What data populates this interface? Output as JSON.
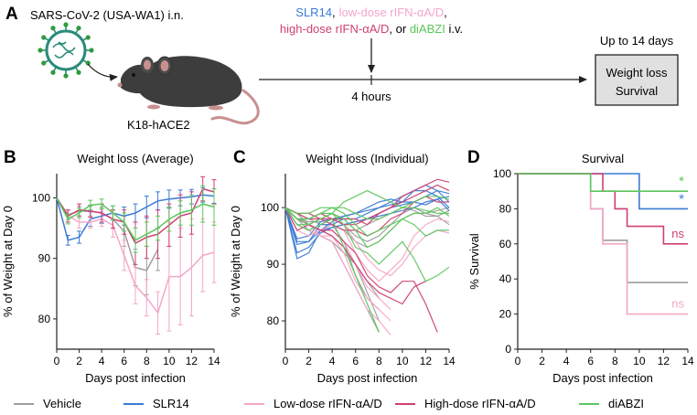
{
  "colors": {
    "vehicle": "#9e9e9e",
    "slr14": "#3a7bd5",
    "low": "#f4a6c8",
    "high": "#cf3f72",
    "diabzi": "#5cc65c",
    "box_fill": "#e0e0e0"
  },
  "panel_a": {
    "letter": "A",
    "virus_label": "SARS-CoV-2 (USA-WA1) i.n.",
    "mouse_label": "K18-hACE2",
    "treat_slr14": "SLR14",
    "treat_low": "low-dose rIFN-αA/D",
    "treat_high": "high-dose rIFN-αA/D",
    "treat_or": ", or ",
    "treat_diabzi": "diABZI",
    "treat_iv": " i.v.",
    "comma": ",",
    "time_label": "4 hours",
    "duration_label": "Up to 14 days",
    "outcome_line1": "Weight loss",
    "outcome_line2": "Survival"
  },
  "panel_labels": {
    "b": "B",
    "c": "C",
    "d": "D"
  },
  "legend": [
    {
      "key": "vehicle",
      "label": "Vehicle"
    },
    {
      "key": "slr14",
      "label": "SLR14"
    },
    {
      "key": "low",
      "label": "Low-dose rIFN-αA/D"
    },
    {
      "key": "high",
      "label": "High-dose rIFN-αA/D"
    },
    {
      "key": "diabzi",
      "label": "diABZI"
    }
  ],
  "chart_data": [
    {
      "id": "weight_avg",
      "type": "line",
      "title": "Weight loss (Average)",
      "xlabel": "Days post infection",
      "ylabel": "% of Weight at Day 0",
      "xlim": [
        0,
        14
      ],
      "ylim": [
        75,
        104
      ],
      "xticks": [
        0,
        2,
        4,
        6,
        8,
        10,
        12,
        14
      ],
      "yticks": [
        80,
        90,
        100
      ],
      "x": [
        0,
        1,
        2,
        3,
        4,
        5,
        6,
        7,
        8,
        9,
        10,
        11,
        12,
        13,
        14
      ],
      "series": [
        {
          "key": "vehicle",
          "name": "Vehicle",
          "values": [
            100,
            97.2,
            97.8,
            97.8,
            97.5,
            96.5,
            94.5,
            88.5,
            88.0,
            91.5,
            null,
            null,
            null,
            null,
            null
          ],
          "errors": [
            0,
            0.8,
            0.8,
            0.8,
            1.0,
            1.5,
            2.5,
            3.0,
            4.0,
            3.5,
            null,
            null,
            null,
            null,
            null
          ]
        },
        {
          "key": "slr14",
          "name": "SLR14",
          "values": [
            100,
            93.0,
            93.5,
            96.5,
            97.0,
            97.5,
            97.0,
            97.5,
            98.5,
            99.5,
            99.8,
            100.0,
            100.2,
            100.5,
            100.3
          ],
          "errors": [
            0,
            0.8,
            1.0,
            1.2,
            1.2,
            1.2,
            1.5,
            1.5,
            1.8,
            1.5,
            1.5,
            1.3,
            1.2,
            1.2,
            1.2
          ]
        },
        {
          "key": "low",
          "name": "Low-dose rIFN-αA/D",
          "values": [
            100,
            97.0,
            96.0,
            96.0,
            96.5,
            95.5,
            90.5,
            85.5,
            83.5,
            81.0,
            87.0,
            87.0,
            88.5,
            90.5,
            91.0
          ],
          "errors": [
            0,
            1.0,
            1.0,
            1.0,
            1.2,
            2.0,
            2.5,
            3.0,
            3.0,
            3.5,
            9.0,
            8.0,
            8.0,
            6.0,
            5.0
          ]
        },
        {
          "key": "high",
          "name": "High-dose rIFN-αA/D",
          "values": [
            100,
            97.0,
            98.0,
            97.8,
            97.5,
            96.5,
            96.0,
            92.5,
            93.5,
            94.0,
            95.5,
            97.0,
            97.5,
            101.5,
            101.0
          ],
          "errors": [
            0,
            1.0,
            1.0,
            1.0,
            1.5,
            1.5,
            2.0,
            3.5,
            3.5,
            4.0,
            3.5,
            3.5,
            3.5,
            2.0,
            2.0
          ]
        },
        {
          "key": "diabzi",
          "name": "diABZI",
          "values": [
            100,
            96.5,
            97.5,
            98.8,
            99.0,
            97.5,
            96.0,
            93.0,
            94.0,
            95.0,
            96.5,
            97.5,
            98.0,
            99.0,
            98.5
          ],
          "errors": [
            0,
            0.8,
            0.8,
            0.8,
            0.8,
            1.2,
            1.5,
            2.0,
            2.0,
            2.0,
            2.0,
            2.0,
            2.5,
            3.0,
            3.0
          ]
        }
      ]
    },
    {
      "id": "weight_ind",
      "type": "line",
      "title": "Weight loss (Individual)",
      "xlabel": "Days post infection",
      "ylabel": "% of Weight at Day 0",
      "xlim": [
        0,
        14
      ],
      "ylim": [
        75,
        106
      ],
      "xticks": [
        0,
        2,
        4,
        6,
        8,
        10,
        12,
        14
      ],
      "yticks": [
        80,
        90,
        100
      ],
      "series": [
        {
          "key": "vehicle",
          "name": "Vehicle",
          "values": [
            100,
            99,
            97,
            96,
            95,
            93,
            90,
            85,
            80
          ]
        },
        {
          "key": "vehicle",
          "name": "Vehicle",
          "values": [
            100,
            98,
            97,
            96,
            97,
            94,
            88,
            84,
            82
          ]
        },
        {
          "key": "vehicle",
          "name": "Vehicle",
          "values": [
            100,
            97,
            96,
            95,
            94,
            90,
            86,
            82,
            78
          ]
        },
        {
          "key": "vehicle",
          "name": "Vehicle",
          "values": [
            100,
            98,
            96,
            95,
            94,
            92,
            90,
            87,
            84
          ]
        },
        {
          "key": "vehicle",
          "name": "Vehicle",
          "values": [
            100,
            98,
            97,
            98,
            99,
            98,
            96,
            97,
            98,
            99,
            100,
            99.5,
            98.5,
            98.5,
            97
          ]
        },
        {
          "key": "vehicle",
          "name": "Vehicle",
          "values": [
            100,
            98,
            97.5,
            97.5,
            98,
            97,
            95,
            94,
            95,
            97,
            99,
            100,
            99,
            98.5,
            99.5
          ]
        },
        {
          "key": "vehicle",
          "name": "Vehicle",
          "values": [
            100,
            99,
            98,
            97,
            97,
            96,
            94,
            93,
            94,
            96,
            98,
            99,
            99,
            99.5,
            100
          ]
        },
        {
          "key": "slr14",
          "name": "SLR14",
          "values": [
            100,
            91,
            92,
            96,
            97.5,
            98.5,
            99,
            100,
            101,
            101.5,
            101,
            101,
            100.5,
            101.5,
            102
          ]
        },
        {
          "key": "slr14",
          "name": "SLR14",
          "values": [
            100,
            92,
            93,
            95.5,
            96.5,
            97,
            97.5,
            98,
            99,
            100,
            100.5,
            101,
            102,
            103,
            102.5
          ]
        },
        {
          "key": "slr14",
          "name": "SLR14",
          "values": [
            100,
            94,
            94,
            97,
            97,
            98,
            98,
            99,
            100,
            100.5,
            101,
            103,
            104,
            103,
            101
          ]
        },
        {
          "key": "slr14",
          "name": "SLR14",
          "values": [
            100,
            94.5,
            95,
            97.5,
            98,
            98.5,
            99,
            99.5,
            100,
            101,
            102,
            103,
            103,
            102,
            100
          ]
        },
        {
          "key": "slr14",
          "name": "SLR14",
          "values": [
            100,
            93.5,
            94,
            96,
            96.5,
            97,
            97.5,
            98,
            98.5,
            99,
            99.5,
            100,
            101,
            101.5,
            99.5
          ]
        },
        {
          "key": "low",
          "name": "Low-dose rIFN-αA/D",
          "values": [
            100,
            98,
            97,
            95,
            94,
            90,
            86,
            82,
            80,
            77.5
          ]
        },
        {
          "key": "low",
          "name": "Low-dose rIFN-αA/D",
          "values": [
            100,
            97,
            96,
            95,
            95,
            92,
            87,
            84,
            82,
            80
          ]
        },
        {
          "key": "low",
          "name": "Low-dose rIFN-αA/D",
          "values": [
            100,
            98,
            97,
            96,
            96,
            94,
            90,
            86,
            84,
            82
          ]
        },
        {
          "key": "low",
          "name": "Low-dose rIFN-αA/D",
          "values": [
            100,
            96,
            95,
            96,
            97,
            96,
            92,
            89,
            87,
            89,
            91,
            95,
            97,
            98,
            97.5
          ]
        },
        {
          "key": "low",
          "name": "Low-dose rIFN-αA/D",
          "values": [
            100,
            97,
            96,
            97,
            98,
            97,
            94,
            91,
            89,
            88,
            90,
            93,
            95,
            96,
            95.5
          ]
        },
        {
          "key": "high",
          "name": "High-dose rIFN-αA/D",
          "values": [
            100,
            96,
            97,
            96,
            96,
            94,
            92,
            88,
            86,
            85,
            87,
            87,
            83,
            78
          ]
        },
        {
          "key": "high",
          "name": "High-dose rIFN-αA/D",
          "values": [
            100,
            98,
            97,
            96,
            95,
            93,
            90,
            87,
            85,
            84,
            83,
            86,
            87
          ]
        },
        {
          "key": "high",
          "name": "High-dose rIFN-αA/D",
          "values": [
            100,
            99,
            99,
            98,
            98,
            97,
            97,
            98,
            99,
            100,
            102,
            103,
            104,
            105,
            104.5
          ]
        },
        {
          "key": "high",
          "name": "High-dose rIFN-αA/D",
          "values": [
            100,
            98,
            98,
            99,
            98,
            98,
            98,
            97,
            99,
            100,
            101,
            102,
            103,
            104,
            103
          ]
        },
        {
          "key": "high",
          "name": "High-dose rIFN-αA/D",
          "values": [
            100,
            99,
            98,
            98,
            97,
            96,
            96,
            95,
            96,
            98,
            99,
            101,
            102,
            101,
            101
          ]
        },
        {
          "key": "diabzi",
          "name": "diABZI",
          "values": [
            100,
            97,
            96,
            97,
            98,
            93,
            88,
            83,
            78
          ]
        },
        {
          "key": "diabzi",
          "name": "diABZI",
          "values": [
            100,
            98,
            97,
            98,
            99,
            97,
            93,
            92,
            90,
            92,
            94,
            91,
            87,
            88,
            89.5
          ]
        },
        {
          "key": "diabzi",
          "name": "diABZI",
          "values": [
            100,
            98,
            98,
            99,
            100,
            99,
            97,
            95,
            96,
            97,
            98,
            97,
            95,
            96,
            96
          ]
        },
        {
          "key": "diabzi",
          "name": "diABZI",
          "values": [
            100,
            99,
            99,
            100,
            100,
            100,
            99,
            98,
            98,
            99,
            100,
            100,
            99.5,
            99,
            99
          ]
        },
        {
          "key": "diabzi",
          "name": "diABZI",
          "values": [
            100,
            97,
            97,
            98,
            99,
            98,
            96,
            93,
            94,
            96,
            98,
            99,
            99,
            100,
            98.5
          ]
        },
        {
          "key": "diabzi",
          "name": "diABZI",
          "values": [
            100,
            98,
            98,
            99,
            99,
            101,
            102,
            103,
            102,
            101,
            100,
            101,
            102,
            102,
            101.5
          ]
        }
      ]
    },
    {
      "id": "survival",
      "type": "line",
      "step": true,
      "title": "Survival",
      "xlabel": "Days post infection",
      "ylabel": "% Survival",
      "xlim": [
        0,
        14
      ],
      "ylim": [
        0,
        100
      ],
      "xticks": [
        0,
        2,
        4,
        6,
        8,
        10,
        12,
        14
      ],
      "yticks": [
        0,
        20,
        40,
        60,
        80,
        100
      ],
      "series": [
        {
          "key": "vehicle",
          "name": "Vehicle",
          "x": [
            0,
            6,
            7,
            9,
            14
          ],
          "values": [
            100,
            80,
            62,
            38,
            38
          ],
          "annotation": ""
        },
        {
          "key": "slr14",
          "name": "SLR14",
          "x": [
            0,
            10,
            14
          ],
          "values": [
            100,
            80,
            80
          ],
          "annotation": "*"
        },
        {
          "key": "low",
          "name": "Low-dose rIFN-αA/D",
          "x": [
            0,
            6,
            7,
            9,
            14
          ],
          "values": [
            100,
            80,
            60,
            20,
            20
          ],
          "annotation": "ns"
        },
        {
          "key": "high",
          "name": "High-dose rIFN-αA/D",
          "x": [
            0,
            7,
            8,
            9,
            12,
            14
          ],
          "values": [
            100,
            90,
            80,
            70,
            60,
            60
          ],
          "annotation": "ns"
        },
        {
          "key": "diabzi",
          "name": "diABZI",
          "x": [
            0,
            6,
            14
          ],
          "values": [
            100,
            90,
            90
          ],
          "annotation": "*"
        }
      ]
    }
  ]
}
